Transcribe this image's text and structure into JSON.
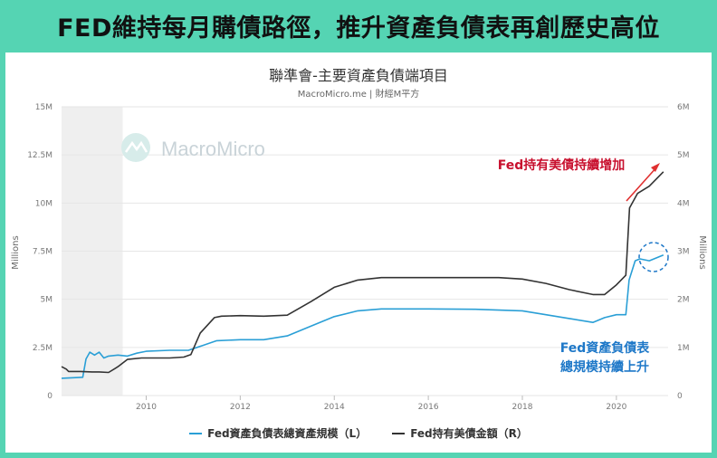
{
  "headline": "FED維持每月購債路徑，推升資產負債表再創歷史高位",
  "colors": {
    "background": "#55d4b3",
    "assets": "#2a9fd6",
    "holdings": "#333333",
    "arrow": "#e03030",
    "annot_red": "#c8102e",
    "annot_blue": "#1e78c8"
  },
  "chart_data": {
    "type": "line",
    "title": "聯準會-主要資產負債端項目",
    "subtitle": "MacroMicro.me | 財經M平方",
    "watermark": "MacroMicro",
    "x_ticks": [
      "2010",
      "2012",
      "2014",
      "2016",
      "2018",
      "2020"
    ],
    "xlim": [
      2008.2,
      2021.1
    ],
    "y_left": {
      "label": "Millions",
      "ticks": [
        "0",
        "2.5M",
        "5M",
        "7.5M",
        "10M",
        "12.5M",
        "15M"
      ],
      "ylim": [
        0,
        15000000
      ]
    },
    "y_right": {
      "label": "Millions",
      "ticks": [
        "0",
        "1M",
        "2M",
        "3M",
        "4M",
        "5M",
        "6M"
      ],
      "ylim": [
        0,
        6000000
      ]
    },
    "shaded_periods": [
      [
        2008.2,
        2009.5
      ]
    ],
    "series": [
      {
        "name": "Fed資產負債表總資產規模（L）",
        "axis": "left",
        "color": "#2a9fd6",
        "points": [
          [
            2008.2,
            900000
          ],
          [
            2008.65,
            950000
          ],
          [
            2008.72,
            1900000
          ],
          [
            2008.8,
            2250000
          ],
          [
            2008.9,
            2100000
          ],
          [
            2009.0,
            2250000
          ],
          [
            2009.1,
            1950000
          ],
          [
            2009.2,
            2050000
          ],
          [
            2009.4,
            2100000
          ],
          [
            2009.6,
            2050000
          ],
          [
            2009.8,
            2200000
          ],
          [
            2010.0,
            2300000
          ],
          [
            2010.5,
            2350000
          ],
          [
            2010.9,
            2350000
          ],
          [
            2011.2,
            2600000
          ],
          [
            2011.5,
            2850000
          ],
          [
            2012.0,
            2900000
          ],
          [
            2012.5,
            2900000
          ],
          [
            2013.0,
            3100000
          ],
          [
            2013.5,
            3600000
          ],
          [
            2014.0,
            4100000
          ],
          [
            2014.5,
            4400000
          ],
          [
            2015.0,
            4500000
          ],
          [
            2016.0,
            4500000
          ],
          [
            2017.0,
            4480000
          ],
          [
            2018.0,
            4400000
          ],
          [
            2018.5,
            4200000
          ],
          [
            2019.0,
            4000000
          ],
          [
            2019.5,
            3800000
          ],
          [
            2019.75,
            4050000
          ],
          [
            2020.0,
            4200000
          ],
          [
            2020.2,
            4200000
          ],
          [
            2020.27,
            6000000
          ],
          [
            2020.4,
            7000000
          ],
          [
            2020.5,
            7100000
          ],
          [
            2020.7,
            7000000
          ],
          [
            2020.9,
            7200000
          ],
          [
            2021.0,
            7300000
          ]
        ]
      },
      {
        "name": "Fed持有美債金額（R）",
        "axis": "right",
        "color": "#333333",
        "points": [
          [
            2008.2,
            600000
          ],
          [
            2008.3,
            550000
          ],
          [
            2008.35,
            500000
          ],
          [
            2008.6,
            500000
          ],
          [
            2008.85,
            490000
          ],
          [
            2009.0,
            490000
          ],
          [
            2009.2,
            480000
          ],
          [
            2009.4,
            600000
          ],
          [
            2009.6,
            750000
          ],
          [
            2009.9,
            780000
          ],
          [
            2010.5,
            780000
          ],
          [
            2010.8,
            800000
          ],
          [
            2010.95,
            850000
          ],
          [
            2011.15,
            1300000
          ],
          [
            2011.45,
            1620000
          ],
          [
            2011.6,
            1650000
          ],
          [
            2012.0,
            1660000
          ],
          [
            2012.5,
            1650000
          ],
          [
            2013.0,
            1670000
          ],
          [
            2013.5,
            1950000
          ],
          [
            2014.0,
            2250000
          ],
          [
            2014.5,
            2400000
          ],
          [
            2015.0,
            2450000
          ],
          [
            2016.0,
            2450000
          ],
          [
            2017.0,
            2450000
          ],
          [
            2017.5,
            2450000
          ],
          [
            2018.0,
            2420000
          ],
          [
            2018.5,
            2330000
          ],
          [
            2019.0,
            2200000
          ],
          [
            2019.5,
            2100000
          ],
          [
            2019.75,
            2100000
          ],
          [
            2020.0,
            2300000
          ],
          [
            2020.2,
            2500000
          ],
          [
            2020.28,
            3900000
          ],
          [
            2020.45,
            4200000
          ],
          [
            2020.7,
            4350000
          ],
          [
            2021.0,
            4650000
          ]
        ]
      }
    ],
    "annotations": [
      {
        "text": "Fed持有美債持續增加",
        "color": "#c8102e"
      },
      {
        "text": "Fed資產負債表",
        "color": "#1e78c8"
      },
      {
        "text": "總規模持續上升",
        "color": "#1e78c8"
      }
    ],
    "legend_position": "bottom",
    "grid": true
  }
}
